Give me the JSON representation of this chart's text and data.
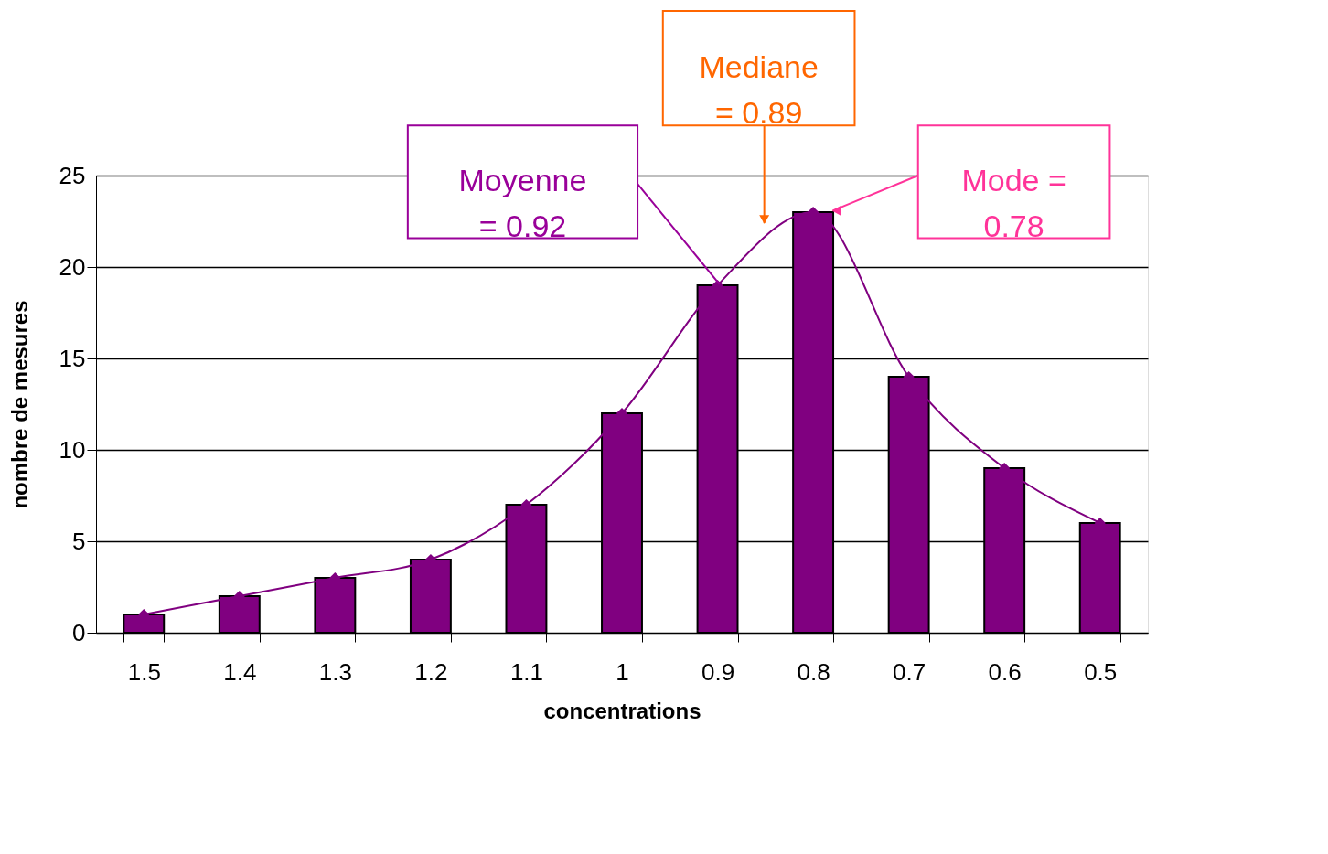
{
  "chart_data": {
    "type": "bar",
    "xlabel": "concentrations",
    "ylabel": "nombre de mesures",
    "categories": [
      "1.5",
      "1.4",
      "1.3",
      "1.2",
      "1.1",
      "1",
      "0.9",
      "0.8",
      "0.7",
      "0.6",
      "0.5"
    ],
    "series": [
      {
        "color": "#800080",
        "values": [
          1,
          2,
          3,
          4,
          7,
          12,
          19,
          23,
          14,
          9,
          6
        ]
      },
      {
        "type": "line",
        "color": "#800080",
        "values": [
          1,
          2,
          3,
          4,
          7,
          12,
          19,
          23,
          14,
          9,
          6
        ]
      }
    ],
    "marker": "diamond",
    "ylim": [
      0,
      25
    ],
    "yticks": [
      0,
      5,
      10,
      15,
      20,
      25
    ],
    "grid": "y",
    "annotations": [
      "Moyenne = 0.92",
      "Mediane = 0.89",
      "Mode = 0.78"
    ]
  }
}
